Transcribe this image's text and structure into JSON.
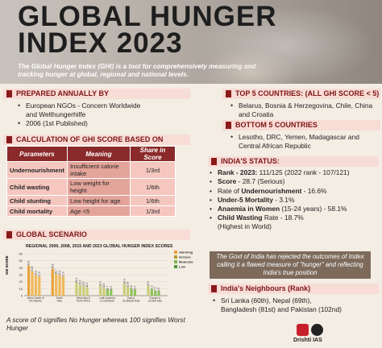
{
  "header": {
    "title_line1": "GLOBAL HUNGER",
    "title_line2": "INDEX 2023",
    "intro": "The Global Hunger Index (GHI) is a tool for comprehensively measuring and tracking hunger at global, regional and national levels."
  },
  "prepared": {
    "heading": "PREPARED ANNUALLY BY",
    "items": [
      "European NGOs - Concern Worldwide",
      "and Welthungerhilfe",
      "2006 (1st Published)"
    ]
  },
  "calculation": {
    "heading": "CALCULATION OF GHI SCORE BASED ON",
    "columns": [
      "Parameters",
      "Meaning",
      "Share in Score"
    ],
    "rows": [
      [
        "Undernourishment",
        "Insufficient calorie intake",
        "1/3rd"
      ],
      [
        "Child wasting",
        "Low weight for height",
        "1/6th"
      ],
      [
        "Child stunting",
        "Low height for age",
        "1/6th"
      ],
      [
        "Child mortality",
        "Age <5",
        "1/3rd"
      ]
    ]
  },
  "scenario": {
    "heading": "GLOBAL SCENARIO",
    "note": "A score of 0 signifies No Hunger whereas 100 signifies Worst Hunger"
  },
  "chart_data": {
    "type": "bar",
    "title": "REGIONAL 2000, 2008, 2015 AND 2023 GLOBAL HUNGER INDEX SCORES",
    "ylabel": "GHI SCORE",
    "ylim": [
      0,
      60
    ],
    "yticks": [
      0,
      10,
      20,
      30,
      40,
      50,
      60
    ],
    "categories": [
      "Africa South of the Sahara",
      "South Asia",
      "West Asia & North Africa",
      "Latin America & Caribbean",
      "East & Southeast Asia",
      "Europe & Central Asia"
    ],
    "series": [
      {
        "name": "2000",
        "values": [
          42.6,
          38.3,
          18.2,
          13.4,
          16.9,
          13.5
        ]
      },
      {
        "name": "2008",
        "values": [
          34.8,
          30.7,
          15.3,
          10.5,
          12.6,
          9.3
        ]
      },
      {
        "name": "2015",
        "values": [
          29.1,
          29.1,
          12.8,
          8.7,
          9.6,
          7.0
        ]
      },
      {
        "name": "2023",
        "values": [
          27.0,
          27.0,
          11.9,
          8.4,
          8.4,
          6.3
        ]
      }
    ],
    "legend": [
      "Alarming",
      "Serious",
      "Moderate",
      "Low"
    ],
    "legend_colors": [
      "#e8a23a",
      "#b99a2e",
      "#7bb84a",
      "#4f9a3a"
    ]
  },
  "top5": {
    "heading": "TOP 5 COUNTRIES: (ALL GHI SCORE < 5)",
    "items": [
      "Belarus, Bosnia & Herzegovina, Chile, China and Croatia"
    ]
  },
  "bottom5": {
    "heading": "BOTTOM 5 COUNTRIES",
    "items": [
      "Lesotho, DRC, Yemen, Madagascar and Central African Republic"
    ]
  },
  "india": {
    "heading": "INDIA'S STATUS:",
    "items": [
      {
        "bold": "Rank - 2023:",
        "text": " 111/125 (2022 rank - 107/121)"
      },
      {
        "bold": "Score",
        "text": " - 28.7 (Serious)"
      },
      {
        "bold": "",
        "text": "Rate of ",
        "bold2": "Undernourishment",
        "text2": " - 16.6%"
      },
      {
        "bold": "Under-5 Mortality",
        "text": " - 3.1%"
      },
      {
        "bold": "Anaemia in Women",
        "text": " (15-24 years) - 58.1%"
      },
      {
        "bold": "Child Wasting",
        "text": " Rate - 18.7%",
        "text3": "(Highest in World)"
      }
    ]
  },
  "govt_note": "The Govt of India has rejected the outcomes of Index calling it a flawed measure of \"hunger\" and reflecting India's true position",
  "neighbours": {
    "heading": "India's Neighbours (Rank)",
    "items": [
      "Sri Lanka (60th), Nepal (69th),",
      "Bangladesh (81st) and Pakistan (102nd)"
    ]
  },
  "brand": {
    "name": "Drishti IAS"
  },
  "colors": {
    "accent": "#8a1a1a",
    "bar_bg": "#f8dcd6",
    "table_head": "#8a2a2a",
    "table_cell": "#f5c7bf"
  }
}
